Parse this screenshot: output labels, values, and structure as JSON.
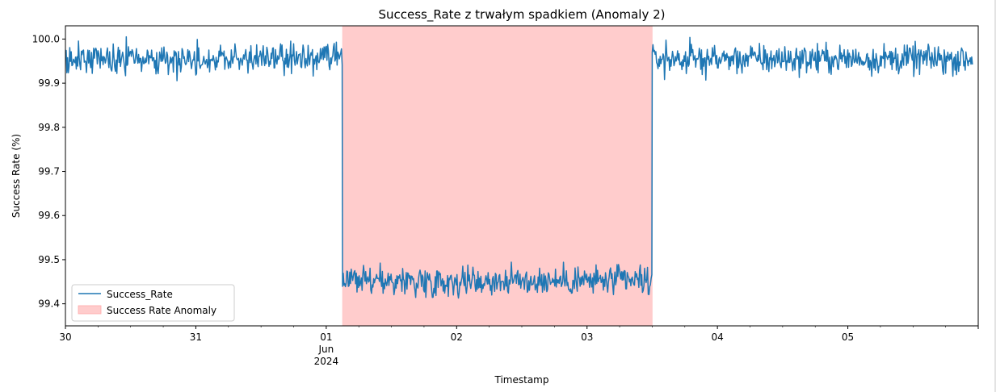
{
  "chart_data": {
    "type": "line",
    "title": "Success_Rate z trwałym spadkiem (Anomaly 2)",
    "xlabel": "Timestamp",
    "ylabel": "Success Rate (%)",
    "xlim": [
      "2024-05-30T00:00",
      "2024-06-06T00:00"
    ],
    "ylim": [
      99.35,
      100.03
    ],
    "x_ticks": [
      {
        "date": "2024-05-30",
        "label": "30",
        "label2": "",
        "label3": ""
      },
      {
        "date": "2024-05-31",
        "label": "31",
        "label2": "",
        "label3": ""
      },
      {
        "date": "2024-06-01",
        "label": "01",
        "label2": "Jun",
        "label3": "2024"
      },
      {
        "date": "2024-06-02",
        "label": "02",
        "label2": "",
        "label3": ""
      },
      {
        "date": "2024-06-03",
        "label": "03",
        "label2": "",
        "label3": ""
      },
      {
        "date": "2024-06-04",
        "label": "04",
        "label2": "",
        "label3": ""
      },
      {
        "date": "2024-06-05",
        "label": "05",
        "label2": "",
        "label3": ""
      },
      {
        "date": "2024-06-06",
        "label": "",
        "label2": "",
        "label3": ""
      }
    ],
    "y_ticks": [
      {
        "value": 99.4,
        "label": "99.4"
      },
      {
        "value": 99.5,
        "label": "99.5"
      },
      {
        "value": 99.6,
        "label": "99.6"
      },
      {
        "value": 99.7,
        "label": "99.7"
      },
      {
        "value": 99.8,
        "label": "99.8"
      },
      {
        "value": 99.9,
        "label": "99.9"
      },
      {
        "value": 100.0,
        "label": "100.0"
      }
    ],
    "series": [
      {
        "name": "Success_Rate",
        "color": "#1f77b4",
        "segments": [
          {
            "start": "2024-05-30T00:00",
            "end": "2024-06-01T03:00",
            "mean": 99.955,
            "noise": 0.03
          },
          {
            "start": "2024-06-01T03:00",
            "end": "2024-06-03T12:00",
            "mean": 99.452,
            "noise": 0.03
          },
          {
            "start": "2024-06-03T12:00",
            "end": "2024-06-05T23:00",
            "mean": 99.955,
            "noise": 0.03
          }
        ]
      }
    ],
    "anomaly_band": {
      "name": "Success Rate Anomaly",
      "start": "2024-06-01T03:00",
      "end": "2024-06-03T12:00",
      "color": "#ffcccc"
    },
    "legend": {
      "placement": "lower-left",
      "entries": [
        "Success_Rate",
        "Success Rate Anomaly"
      ]
    },
    "grid": false
  }
}
